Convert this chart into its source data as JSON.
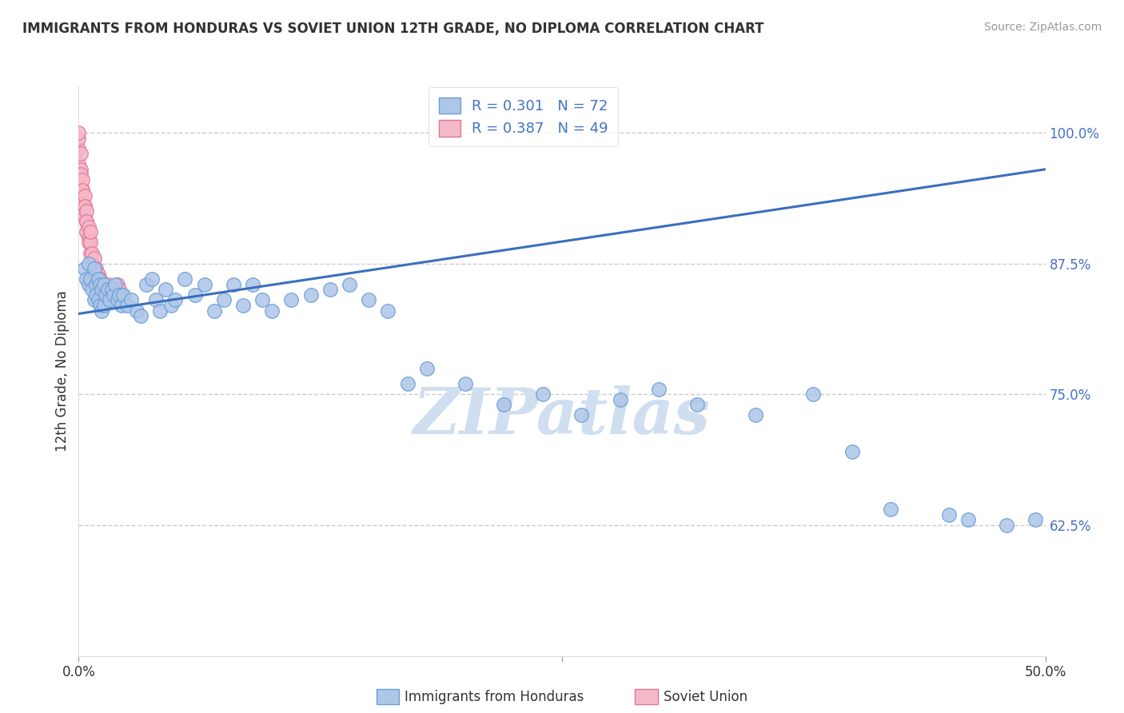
{
  "title": "IMMIGRANTS FROM HONDURAS VS SOVIET UNION 12TH GRADE, NO DIPLOMA CORRELATION CHART",
  "source": "Source: ZipAtlas.com",
  "ylabel": "12th Grade, No Diploma",
  "xlim": [
    0.0,
    0.5
  ],
  "ylim": [
    0.5,
    1.045
  ],
  "ytick_labels": [
    "62.5%",
    "75.0%",
    "87.5%",
    "100.0%"
  ],
  "yticks": [
    0.625,
    0.75,
    0.875,
    1.0
  ],
  "legend_r1": "R = 0.301",
  "legend_n1": "N = 72",
  "legend_r2": "R = 0.387",
  "legend_n2": "N = 49",
  "blue_color": "#aec6e8",
  "blue_edge": "#6a9fd8",
  "pink_color": "#f5b8c8",
  "pink_edge": "#e07898",
  "line_color": "#3a6fbd",
  "text_color_blue": "#4472c4",
  "watermark": "ZIPatlas",
  "watermark_color": "#d0dff0",
  "trendline_x0": 0.0,
  "trendline_y0": 0.827,
  "trendline_x1": 0.5,
  "trendline_y1": 0.965,
  "honduras_x": [
    0.003,
    0.004,
    0.005,
    0.005,
    0.006,
    0.007,
    0.008,
    0.008,
    0.009,
    0.009,
    0.01,
    0.01,
    0.011,
    0.011,
    0.012,
    0.012,
    0.013,
    0.013,
    0.014,
    0.015,
    0.016,
    0.017,
    0.018,
    0.019,
    0.02,
    0.021,
    0.022,
    0.023,
    0.025,
    0.027,
    0.03,
    0.032,
    0.035,
    0.038,
    0.04,
    0.042,
    0.045,
    0.048,
    0.05,
    0.055,
    0.06,
    0.065,
    0.07,
    0.075,
    0.08,
    0.085,
    0.09,
    0.095,
    0.1,
    0.11,
    0.12,
    0.13,
    0.14,
    0.15,
    0.16,
    0.17,
    0.18,
    0.2,
    0.22,
    0.24,
    0.26,
    0.28,
    0.3,
    0.32,
    0.35,
    0.38,
    0.4,
    0.42,
    0.45,
    0.46,
    0.48,
    0.495
  ],
  "honduras_y": [
    0.87,
    0.86,
    0.875,
    0.855,
    0.86,
    0.85,
    0.87,
    0.84,
    0.855,
    0.845,
    0.86,
    0.84,
    0.855,
    0.835,
    0.85,
    0.83,
    0.855,
    0.835,
    0.845,
    0.85,
    0.84,
    0.85,
    0.845,
    0.855,
    0.84,
    0.845,
    0.835,
    0.845,
    0.835,
    0.84,
    0.83,
    0.825,
    0.855,
    0.86,
    0.84,
    0.83,
    0.85,
    0.835,
    0.84,
    0.86,
    0.845,
    0.855,
    0.83,
    0.84,
    0.855,
    0.835,
    0.855,
    0.84,
    0.83,
    0.84,
    0.845,
    0.85,
    0.855,
    0.84,
    0.83,
    0.76,
    0.775,
    0.76,
    0.74,
    0.75,
    0.73,
    0.745,
    0.755,
    0.74,
    0.73,
    0.75,
    0.695,
    0.64,
    0.635,
    0.63,
    0.625,
    0.63
  ],
  "soviet_x": [
    0.0,
    0.0,
    0.0,
    0.0,
    0.0,
    0.001,
    0.001,
    0.001,
    0.001,
    0.002,
    0.002,
    0.002,
    0.002,
    0.003,
    0.003,
    0.003,
    0.003,
    0.004,
    0.004,
    0.004,
    0.004,
    0.005,
    0.005,
    0.005,
    0.006,
    0.006,
    0.006,
    0.007,
    0.007,
    0.008,
    0.008,
    0.009,
    0.009,
    0.01,
    0.01,
    0.011,
    0.011,
    0.012,
    0.012,
    0.013,
    0.014,
    0.015,
    0.016,
    0.017,
    0.018,
    0.019,
    0.02,
    0.021,
    0.022
  ],
  "soviet_y": [
    0.97,
    0.985,
    0.995,
    1.0,
    0.96,
    0.965,
    0.98,
    0.95,
    0.96,
    0.945,
    0.955,
    0.935,
    0.945,
    0.93,
    0.94,
    0.92,
    0.93,
    0.915,
    0.925,
    0.905,
    0.915,
    0.9,
    0.91,
    0.895,
    0.885,
    0.895,
    0.905,
    0.875,
    0.885,
    0.87,
    0.88,
    0.86,
    0.87,
    0.855,
    0.865,
    0.85,
    0.86,
    0.845,
    0.855,
    0.85,
    0.845,
    0.855,
    0.85,
    0.845,
    0.85,
    0.845,
    0.855,
    0.85,
    0.845
  ]
}
